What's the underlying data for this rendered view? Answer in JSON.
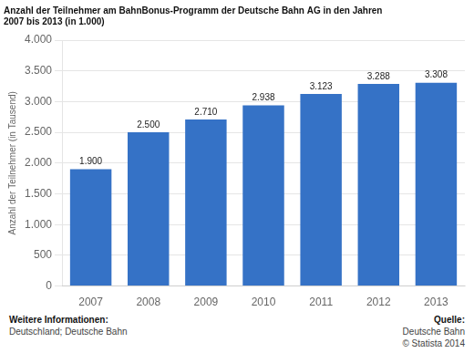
{
  "chart_data": {
    "type": "bar",
    "title": "Anzahl der Teilnehmer am BahnBonus-Programm der Deutsche Bahn AG in den Jahren\n2007 bis 2013 (in 1.000)",
    "categories": [
      "2007",
      "2008",
      "2009",
      "2010",
      "2011",
      "2012",
      "2013"
    ],
    "values": [
      1900,
      2500,
      2710,
      2938,
      3123,
      3288,
      3308
    ],
    "value_labels": [
      "1.900",
      "2.500",
      "2.710",
      "2.938",
      "3.123",
      "3.288",
      "3.308"
    ],
    "data_labels": true,
    "color": "#3572C6",
    "y_label": "Anzahl der Teilnehmer (in Tausend)",
    "ylim": [
      0,
      4000
    ],
    "yticks": [
      0,
      500,
      {
        "value": 1000,
        "label": "1.000"
      },
      {
        "value": 1500,
        "label": "1.500"
      },
      {
        "value": 2000,
        "label": "2.000"
      },
      {
        "value": 2500,
        "label": "2.500"
      },
      {
        "value": 3000,
        "label": "3.000"
      },
      {
        "value": 3500,
        "label": "3.500"
      },
      {
        "value": 4000,
        "label": "4.000"
      }
    ],
    "grid": true,
    "footer_left": [
      "Weitere Informationen:",
      "Deutschland; Deutsche Bahn"
    ],
    "footer_right": [
      "Quelle:",
      "Deutsche Bahn",
      "© Statista 2014"
    ]
  }
}
